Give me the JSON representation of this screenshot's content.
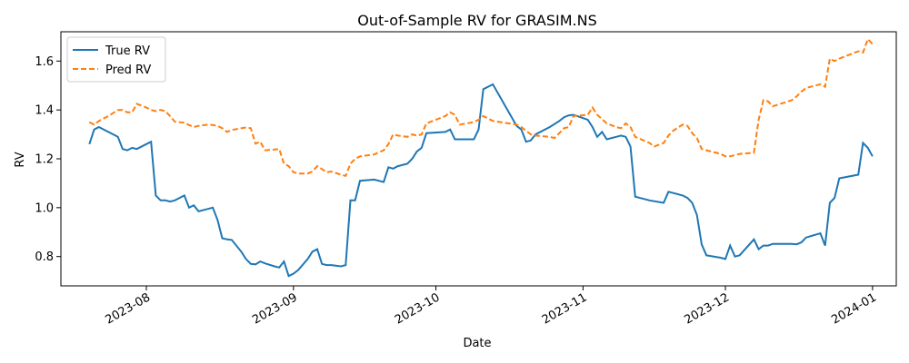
{
  "chart_data": {
    "type": "line",
    "title": "Out-of-Sample RV for GRASIM.NS",
    "xlabel": "Date",
    "ylabel": "RV",
    "ylim": [
      0.68,
      1.72
    ],
    "xlim": [
      "2023-07-14",
      "2024-01-06"
    ],
    "grid": false,
    "legend_position": "top-left",
    "x_ticks": [
      {
        "date": "2023-08-01",
        "label": "2023-08"
      },
      {
        "date": "2023-09-01",
        "label": "2023-09"
      },
      {
        "date": "2023-10-01",
        "label": "2023-10"
      },
      {
        "date": "2023-11-01",
        "label": "2023-11"
      },
      {
        "date": "2023-12-01",
        "label": "2023-12"
      },
      {
        "date": "2024-01-01",
        "label": "2024-01"
      }
    ],
    "y_ticks": [
      0.8,
      1.0,
      1.2,
      1.4,
      1.6
    ],
    "series": [
      {
        "name": "True RV",
        "color": "#1f77b4",
        "dash": "solid",
        "points": [
          [
            "2023-07-20",
            1.26
          ],
          [
            "2023-07-21",
            1.32
          ],
          [
            "2023-07-22",
            1.33
          ],
          [
            "2023-07-24",
            1.31
          ],
          [
            "2023-07-26",
            1.29
          ],
          [
            "2023-07-27",
            1.24
          ],
          [
            "2023-07-28",
            1.235
          ],
          [
            "2023-07-29",
            1.245
          ],
          [
            "2023-07-30",
            1.24
          ],
          [
            "2023-08-01",
            1.26
          ],
          [
            "2023-08-02",
            1.27
          ],
          [
            "2023-08-03",
            1.05
          ],
          [
            "2023-08-04",
            1.03
          ],
          [
            "2023-08-05",
            1.03
          ],
          [
            "2023-08-06",
            1.025
          ],
          [
            "2023-08-07",
            1.03
          ],
          [
            "2023-08-08",
            1.04
          ],
          [
            "2023-08-09",
            1.05
          ],
          [
            "2023-08-10",
            1.0
          ],
          [
            "2023-08-11",
            1.01
          ],
          [
            "2023-08-12",
            0.985
          ],
          [
            "2023-08-14",
            0.995
          ],
          [
            "2023-08-15",
            1.0
          ],
          [
            "2023-08-16",
            0.95
          ],
          [
            "2023-08-17",
            0.875
          ],
          [
            "2023-08-18",
            0.87
          ],
          [
            "2023-08-19",
            0.868
          ],
          [
            "2023-08-21",
            0.82
          ],
          [
            "2023-08-22",
            0.79
          ],
          [
            "2023-08-23",
            0.77
          ],
          [
            "2023-08-24",
            0.768
          ],
          [
            "2023-08-25",
            0.78
          ],
          [
            "2023-08-26",
            0.772
          ],
          [
            "2023-08-28",
            0.76
          ],
          [
            "2023-08-29",
            0.755
          ],
          [
            "2023-08-30",
            0.78
          ],
          [
            "2023-08-31",
            0.72
          ],
          [
            "2023-09-01",
            0.73
          ],
          [
            "2023-09-02",
            0.745
          ],
          [
            "2023-09-04",
            0.79
          ],
          [
            "2023-09-05",
            0.82
          ],
          [
            "2023-09-06",
            0.83
          ],
          [
            "2023-09-07",
            0.77
          ],
          [
            "2023-09-08",
            0.765
          ],
          [
            "2023-09-09",
            0.765
          ],
          [
            "2023-09-11",
            0.76
          ],
          [
            "2023-09-12",
            0.765
          ],
          [
            "2023-09-13",
            1.03
          ],
          [
            "2023-09-14",
            1.03
          ],
          [
            "2023-09-15",
            1.11
          ],
          [
            "2023-09-18",
            1.115
          ],
          [
            "2023-09-20",
            1.105
          ],
          [
            "2023-09-21",
            1.165
          ],
          [
            "2023-09-22",
            1.16
          ],
          [
            "2023-09-23",
            1.17
          ],
          [
            "2023-09-25",
            1.18
          ],
          [
            "2023-09-26",
            1.2
          ],
          [
            "2023-09-27",
            1.23
          ],
          [
            "2023-09-28",
            1.245
          ],
          [
            "2023-09-29",
            1.305
          ],
          [
            "2023-10-03",
            1.31
          ],
          [
            "2023-10-04",
            1.32
          ],
          [
            "2023-10-05",
            1.28
          ],
          [
            "2023-10-09",
            1.28
          ],
          [
            "2023-10-10",
            1.32
          ],
          [
            "2023-10-11",
            1.485
          ],
          [
            "2023-10-13",
            1.505
          ],
          [
            "2023-10-18",
            1.335
          ],
          [
            "2023-10-19",
            1.32
          ],
          [
            "2023-10-20",
            1.27
          ],
          [
            "2023-10-21",
            1.275
          ],
          [
            "2023-10-22",
            1.3
          ],
          [
            "2023-10-25",
            1.33
          ],
          [
            "2023-10-27",
            1.355
          ],
          [
            "2023-10-28",
            1.37
          ],
          [
            "2023-10-29",
            1.378
          ],
          [
            "2023-10-30",
            1.38
          ],
          [
            "2023-11-02",
            1.36
          ],
          [
            "2023-11-03",
            1.33
          ],
          [
            "2023-11-04",
            1.29
          ],
          [
            "2023-11-05",
            1.31
          ],
          [
            "2023-11-06",
            1.28
          ],
          [
            "2023-11-08",
            1.29
          ],
          [
            "2023-11-09",
            1.295
          ],
          [
            "2023-11-10",
            1.29
          ],
          [
            "2023-11-11",
            1.25
          ],
          [
            "2023-11-12",
            1.045
          ],
          [
            "2023-11-15",
            1.03
          ],
          [
            "2023-11-18",
            1.02
          ],
          [
            "2023-11-19",
            1.065
          ],
          [
            "2023-11-22",
            1.05
          ],
          [
            "2023-11-23",
            1.04
          ],
          [
            "2023-11-24",
            1.02
          ],
          [
            "2023-11-25",
            0.97
          ],
          [
            "2023-11-26",
            0.85
          ],
          [
            "2023-11-27",
            0.805
          ],
          [
            "2023-11-30",
            0.795
          ],
          [
            "2023-12-01",
            0.79
          ],
          [
            "2023-12-02",
            0.845
          ],
          [
            "2023-12-03",
            0.8
          ],
          [
            "2023-12-04",
            0.805
          ],
          [
            "2023-12-07",
            0.87
          ],
          [
            "2023-12-08",
            0.83
          ],
          [
            "2023-12-09",
            0.845
          ],
          [
            "2023-12-10",
            0.845
          ],
          [
            "2023-12-11",
            0.852
          ],
          [
            "2023-12-15",
            0.852
          ],
          [
            "2023-12-16",
            0.85
          ],
          [
            "2023-12-17",
            0.858
          ],
          [
            "2023-12-18",
            0.878
          ],
          [
            "2023-12-21",
            0.895
          ],
          [
            "2023-12-22",
            0.845
          ],
          [
            "2023-12-23",
            1.02
          ],
          [
            "2023-12-24",
            1.04
          ],
          [
            "2023-12-25",
            1.12
          ],
          [
            "2023-12-29",
            1.135
          ],
          [
            "2023-12-30",
            1.265
          ],
          [
            "2023-12-31",
            1.245
          ],
          [
            "2024-01-01",
            1.21
          ]
        ]
      },
      {
        "name": "Pred RV",
        "color": "#ff7f0e",
        "dash": "dashed",
        "points": [
          [
            "2023-07-20",
            1.35
          ],
          [
            "2023-07-21",
            1.34
          ],
          [
            "2023-07-22",
            1.355
          ],
          [
            "2023-07-24",
            1.375
          ],
          [
            "2023-07-26",
            1.4
          ],
          [
            "2023-07-27",
            1.4
          ],
          [
            "2023-07-28",
            1.39
          ],
          [
            "2023-07-29",
            1.39
          ],
          [
            "2023-07-30",
            1.425
          ],
          [
            "2023-08-01",
            1.41
          ],
          [
            "2023-08-02",
            1.4
          ],
          [
            "2023-08-03",
            1.395
          ],
          [
            "2023-08-04",
            1.4
          ],
          [
            "2023-08-05",
            1.395
          ],
          [
            "2023-08-06",
            1.375
          ],
          [
            "2023-08-07",
            1.352
          ],
          [
            "2023-08-09",
            1.348
          ],
          [
            "2023-08-10",
            1.338
          ],
          [
            "2023-08-11",
            1.33
          ],
          [
            "2023-08-12",
            1.335
          ],
          [
            "2023-08-14",
            1.34
          ],
          [
            "2023-08-15",
            1.338
          ],
          [
            "2023-08-16",
            1.335
          ],
          [
            "2023-08-17",
            1.325
          ],
          [
            "2023-08-18",
            1.31
          ],
          [
            "2023-08-19",
            1.318
          ],
          [
            "2023-08-21",
            1.325
          ],
          [
            "2023-08-22",
            1.328
          ],
          [
            "2023-08-23",
            1.325
          ],
          [
            "2023-08-24",
            1.262
          ],
          [
            "2023-08-25",
            1.27
          ],
          [
            "2023-08-26",
            1.235
          ],
          [
            "2023-08-28",
            1.238
          ],
          [
            "2023-08-29",
            1.24
          ],
          [
            "2023-08-30",
            1.18
          ],
          [
            "2023-08-31",
            1.17
          ],
          [
            "2023-09-01",
            1.145
          ],
          [
            "2023-09-02",
            1.14
          ],
          [
            "2023-09-04",
            1.14
          ],
          [
            "2023-09-05",
            1.148
          ],
          [
            "2023-09-06",
            1.17
          ],
          [
            "2023-09-07",
            1.158
          ],
          [
            "2023-09-08",
            1.145
          ],
          [
            "2023-09-09",
            1.148
          ],
          [
            "2023-09-11",
            1.135
          ],
          [
            "2023-09-12",
            1.13
          ],
          [
            "2023-09-13",
            1.18
          ],
          [
            "2023-09-14",
            1.2
          ],
          [
            "2023-09-15",
            1.21
          ],
          [
            "2023-09-18",
            1.218
          ],
          [
            "2023-09-20",
            1.235
          ],
          [
            "2023-09-21",
            1.26
          ],
          [
            "2023-09-22",
            1.3
          ],
          [
            "2023-09-23",
            1.295
          ],
          [
            "2023-09-25",
            1.29
          ],
          [
            "2023-09-26",
            1.3
          ],
          [
            "2023-09-27",
            1.295
          ],
          [
            "2023-09-28",
            1.3
          ],
          [
            "2023-09-29",
            1.345
          ],
          [
            "2023-10-03",
            1.375
          ],
          [
            "2023-10-04",
            1.39
          ],
          [
            "2023-10-05",
            1.38
          ],
          [
            "2023-10-06",
            1.34
          ],
          [
            "2023-10-09",
            1.35
          ],
          [
            "2023-10-10",
            1.36
          ],
          [
            "2023-10-11",
            1.375
          ],
          [
            "2023-10-13",
            1.355
          ],
          [
            "2023-10-18",
            1.34
          ],
          [
            "2023-10-19",
            1.33
          ],
          [
            "2023-10-20",
            1.315
          ],
          [
            "2023-10-21",
            1.3
          ],
          [
            "2023-10-22",
            1.295
          ],
          [
            "2023-10-25",
            1.29
          ],
          [
            "2023-10-26",
            1.285
          ],
          [
            "2023-10-27",
            1.305
          ],
          [
            "2023-10-28",
            1.325
          ],
          [
            "2023-10-29",
            1.33
          ],
          [
            "2023-10-30",
            1.375
          ],
          [
            "2023-11-02",
            1.38
          ],
          [
            "2023-11-03",
            1.41
          ],
          [
            "2023-11-04",
            1.38
          ],
          [
            "2023-11-06",
            1.345
          ],
          [
            "2023-11-08",
            1.33
          ],
          [
            "2023-11-09",
            1.325
          ],
          [
            "2023-11-10",
            1.345
          ],
          [
            "2023-11-11",
            1.33
          ],
          [
            "2023-11-12",
            1.29
          ],
          [
            "2023-11-15",
            1.265
          ],
          [
            "2023-11-16",
            1.25
          ],
          [
            "2023-11-18",
            1.265
          ],
          [
            "2023-11-19",
            1.295
          ],
          [
            "2023-11-20",
            1.315
          ],
          [
            "2023-11-22",
            1.34
          ],
          [
            "2023-11-23",
            1.335
          ],
          [
            "2023-11-24",
            1.305
          ],
          [
            "2023-11-25",
            1.285
          ],
          [
            "2023-11-26",
            1.24
          ],
          [
            "2023-11-27",
            1.235
          ],
          [
            "2023-11-30",
            1.22
          ],
          [
            "2023-12-01",
            1.21
          ],
          [
            "2023-12-02",
            1.21
          ],
          [
            "2023-12-04",
            1.22
          ],
          [
            "2023-12-07",
            1.225
          ],
          [
            "2023-12-08",
            1.36
          ],
          [
            "2023-12-09",
            1.44
          ],
          [
            "2023-12-10",
            1.435
          ],
          [
            "2023-12-11",
            1.415
          ],
          [
            "2023-12-15",
            1.44
          ],
          [
            "2023-12-16",
            1.455
          ],
          [
            "2023-12-17",
            1.475
          ],
          [
            "2023-12-18",
            1.49
          ],
          [
            "2023-12-21",
            1.505
          ],
          [
            "2023-12-22",
            1.495
          ],
          [
            "2023-12-23",
            1.61
          ],
          [
            "2023-12-24",
            1.6
          ],
          [
            "2023-12-25",
            1.61
          ],
          [
            "2023-12-29",
            1.64
          ],
          [
            "2023-12-30",
            1.635
          ],
          [
            "2023-12-31",
            1.69
          ],
          [
            "2024-01-01",
            1.67
          ]
        ]
      }
    ]
  }
}
